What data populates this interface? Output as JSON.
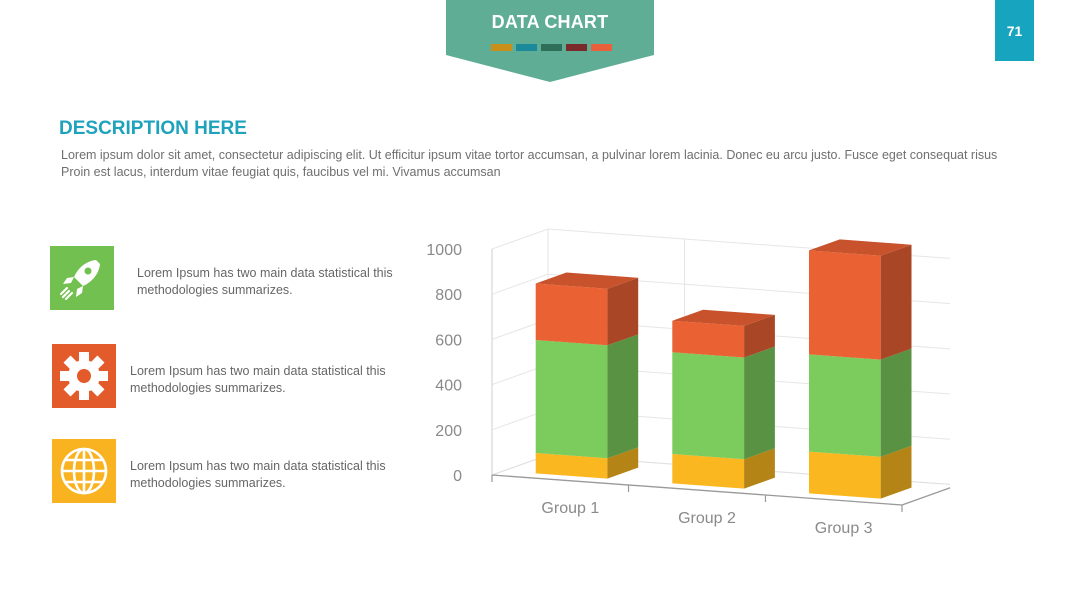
{
  "header": {
    "title": "DATA CHART",
    "swatches": [
      "#c8901a",
      "#1a8a9a",
      "#2f6f5a",
      "#7a2a2a",
      "#e8613a"
    ],
    "banner_color": "#5fad95"
  },
  "page_number": "71",
  "section": {
    "heading": "DESCRIPTION HERE",
    "body": "Lorem ipsum dolor sit amet, consectetur adipiscing elit. Ut efficitur ipsum vitae tortor accumsan, a pulvinar lorem lacinia. Donec eu arcu justo. Fusce eget consequat risus Proin est lacus, interdum vitae feugiat quis, faucibus vel mi.  Vivamus accumsan"
  },
  "features": [
    {
      "icon": "rocket-icon",
      "color": "#72c04f",
      "text": "Lorem Ipsum has two main data statistical this methodologies summarizes."
    },
    {
      "icon": "gear-icon",
      "color": "#e35a2b",
      "text": "Lorem Ipsum has two main data statistical this methodologies summarizes."
    },
    {
      "icon": "globe-icon",
      "color": "#f9b320",
      "text": "Lorem Ipsum has two main data statistical this methodologies summarizes."
    }
  ],
  "chart_data": {
    "type": "bar",
    "stacked": true,
    "three_d": true,
    "categories": [
      "Group 1",
      "Group 2",
      "Group 3"
    ],
    "series": [
      {
        "color": "#fbb71f",
        "values": [
          90,
          130,
          185
        ]
      },
      {
        "color": "#7ccb5d",
        "values": [
          500,
          450,
          430
        ]
      },
      {
        "color": "#ea6133",
        "values": [
          250,
          140,
          460
        ]
      }
    ],
    "ylim": [
      0,
      1000
    ],
    "yticks": [
      "0",
      "200",
      "400",
      "600",
      "800",
      "1000"
    ],
    "grid": true,
    "legend": "none"
  }
}
